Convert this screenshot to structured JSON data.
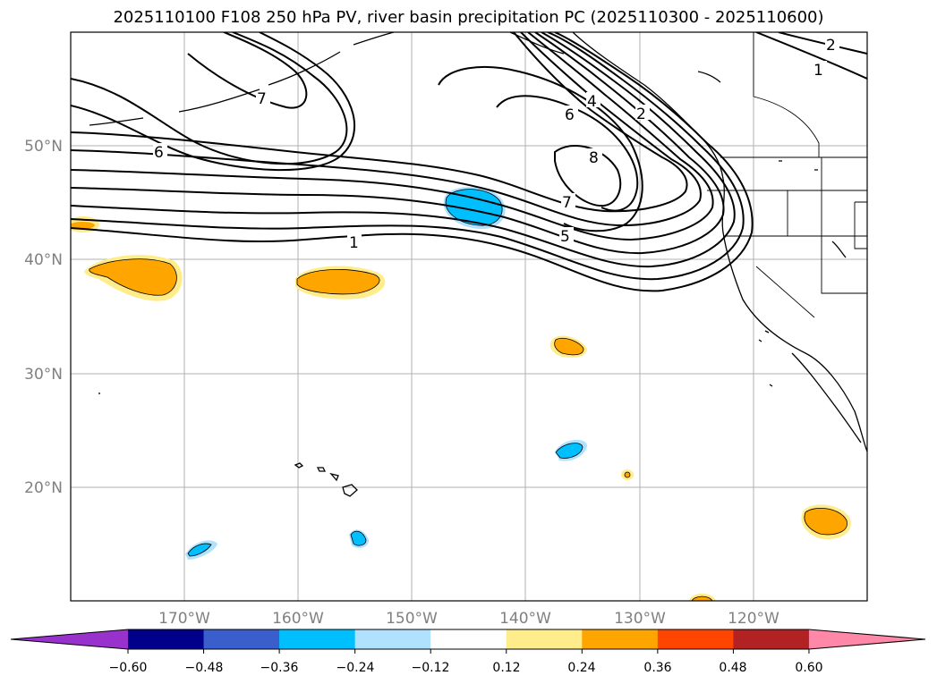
{
  "title": "2025110100 F108 250 hPa PV, river basin precipitation PC (2025110300 - 2025110600)",
  "lat_ticks": [
    "50°N",
    "40°N",
    "30°N",
    "20°N"
  ],
  "lon_ticks": [
    "170°W",
    "160°W",
    "150°W",
    "140°W",
    "130°W",
    "120°W"
  ],
  "contour_labels": [
    "1",
    "2",
    "4",
    "5",
    "6",
    "7",
    "8",
    "1",
    "2",
    "6",
    "7"
  ],
  "colorbar": {
    "colors": [
      "#9932CC",
      "#00008B",
      "#3A5FCD",
      "#00BFFF",
      "#B0E2FF",
      "#FFFFFF",
      "#FFEC8B",
      "#FFA500",
      "#FF4500",
      "#B22222",
      "#FF88A8"
    ],
    "tick_labels": [
      "−0.60",
      "−0.48",
      "−0.36",
      "−0.24",
      "−0.12",
      "0.12",
      "0.24",
      "0.36",
      "0.48",
      "0.60"
    ]
  }
}
